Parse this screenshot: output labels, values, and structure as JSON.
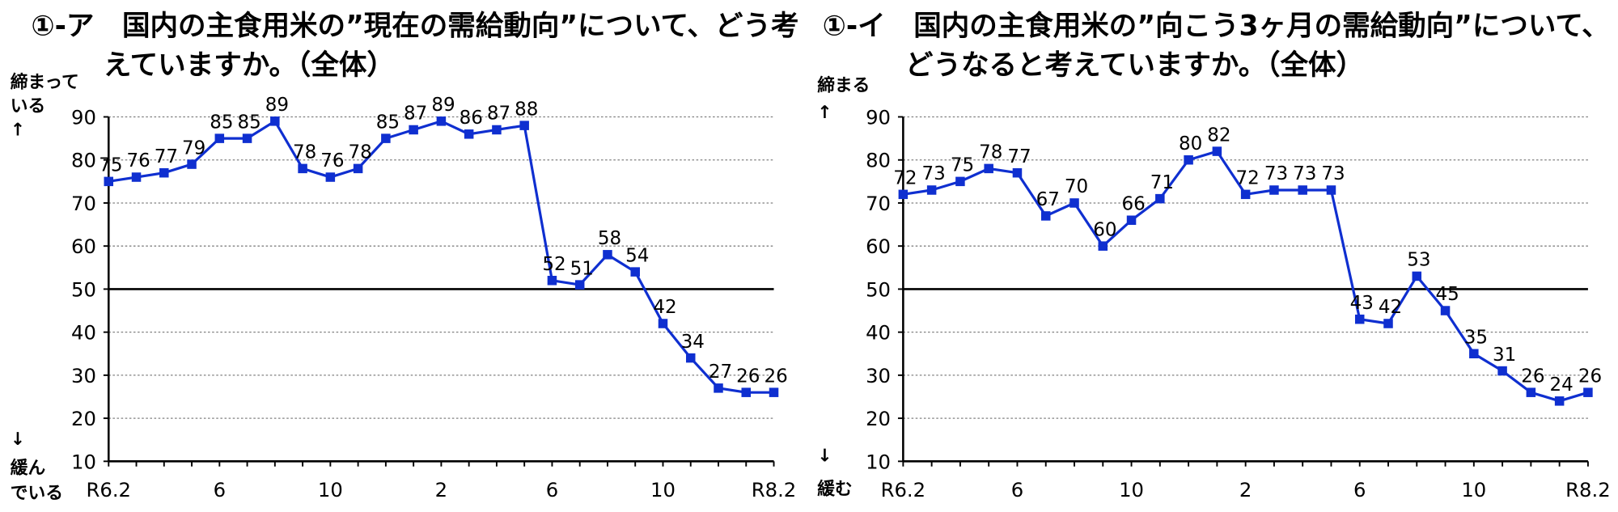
{
  "colors": {
    "line": "#0f2fd0",
    "grid": "#808080",
    "axis": "#000000"
  },
  "chart_data": [
    {
      "type": "line",
      "title_lines": [
        "①-ア　国内の主食用米の”現在の需給動向”について、どう考",
        "えていますか。（全体）"
      ],
      "ylabel_top": [
        "締まって",
        "いる",
        "↑"
      ],
      "ylabel_bottom": [
        "↓",
        "緩ん",
        "でいる"
      ],
      "ylim": [
        10,
        90
      ],
      "yticks": [
        10,
        20,
        30,
        40,
        50,
        60,
        70,
        80,
        90
      ],
      "reference_line": 50,
      "grid": true,
      "xtick_labels": [
        {
          "index": 0,
          "label": "R6.2"
        },
        {
          "index": 4,
          "label": "6"
        },
        {
          "index": 8,
          "label": "10"
        },
        {
          "index": 12,
          "label": "2"
        },
        {
          "index": 16,
          "label": "6"
        },
        {
          "index": 20,
          "label": "10"
        },
        {
          "index": 24,
          "label": "R8.2"
        }
      ],
      "values": [
        75,
        76,
        77,
        79,
        85,
        85,
        89,
        78,
        76,
        78,
        85,
        87,
        89,
        86,
        87,
        88,
        52,
        51,
        58,
        54,
        42,
        34,
        27,
        26,
        26
      ]
    },
    {
      "type": "line",
      "title_lines": [
        "①-イ　国内の主食用米の”向こう3ヶ月の需給動向”について、",
        "どうなると考えていますか。（全体）"
      ],
      "ylabel_top": [
        "締まる",
        "↑"
      ],
      "ylabel_bottom": [
        "↓",
        "緩む"
      ],
      "ylim": [
        10,
        90
      ],
      "yticks": [
        10,
        20,
        30,
        40,
        50,
        60,
        70,
        80,
        90
      ],
      "reference_line": 50,
      "grid": true,
      "xtick_labels": [
        {
          "index": 0,
          "label": "R6.2"
        },
        {
          "index": 4,
          "label": "6"
        },
        {
          "index": 8,
          "label": "10"
        },
        {
          "index": 12,
          "label": "2"
        },
        {
          "index": 16,
          "label": "6"
        },
        {
          "index": 20,
          "label": "10"
        },
        {
          "index": 24,
          "label": "R8.2"
        }
      ],
      "values": [
        72,
        73,
        75,
        78,
        77,
        67,
        70,
        60,
        66,
        71,
        80,
        82,
        72,
        73,
        73,
        73,
        43,
        42,
        53,
        45,
        35,
        31,
        26,
        24,
        26
      ]
    }
  ]
}
